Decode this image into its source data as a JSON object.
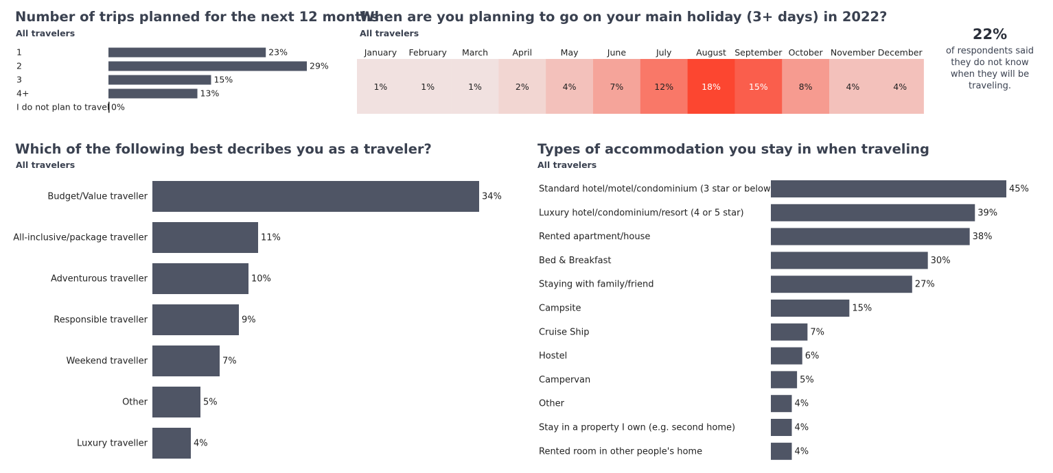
{
  "colors": {
    "bar": "#4f5565",
    "heat_low": "#f0f0f0",
    "heat_high": "#fc4630",
    "text": "#222222"
  },
  "panels": {
    "trips": {
      "title": "Number of trips planned for the next 12 months",
      "subtitle": "All travelers"
    },
    "holiday": {
      "title": "When are you planning to go on your main holiday (3+ days) in 2022?",
      "subtitle": "All travelers"
    },
    "traveler": {
      "title": "Which of the following best decribes you as a traveler?",
      "subtitle": "All travelers"
    },
    "accommodation": {
      "title": "Types of accommodation you stay in when traveling",
      "subtitle": "All travelers"
    }
  },
  "callout": {
    "value": "22%",
    "text": "of respondents said they do not know when they will be traveling."
  },
  "chart_data": [
    {
      "type": "bar",
      "orientation": "horizontal",
      "title": "Number of trips planned for the next 12 months",
      "categories": [
        "1",
        "2",
        "3",
        "4+",
        "I do not plan to travel"
      ],
      "values": [
        23,
        29,
        15,
        13,
        0
      ],
      "labels": [
        "23%",
        "29%",
        "15%",
        "13%",
        "0%"
      ],
      "unit": "%",
      "xlim": [
        0,
        29
      ]
    },
    {
      "type": "heatmap",
      "title": "When are you planning to go on your main holiday (3+ days) in 2022?",
      "categories": [
        "January",
        "February",
        "March",
        "April",
        "May",
        "June",
        "July",
        "August",
        "September",
        "October",
        "November",
        "December"
      ],
      "values": [
        1,
        1,
        1,
        2,
        4,
        7,
        12,
        18,
        15,
        8,
        4,
        4
      ],
      "labels": [
        "1%",
        "1%",
        "1%",
        "2%",
        "4%",
        "7%",
        "12%",
        "18%",
        "15%",
        "8%",
        "4%",
        "4%"
      ],
      "unit": "%"
    },
    {
      "type": "bar",
      "orientation": "horizontal",
      "title": "Which of the following best decribes you as a traveler?",
      "categories": [
        "Budget/Value traveller",
        "All-inclusive/package traveller",
        "Adventurous traveller",
        "Responsible traveller",
        "Weekend traveller",
        "Other",
        "Luxury traveller"
      ],
      "values": [
        34,
        11,
        10,
        9,
        7,
        5,
        4
      ],
      "labels": [
        "34%",
        "11%",
        "10%",
        "9%",
        "7%",
        "5%",
        "4%"
      ],
      "unit": "%",
      "xlim": [
        0,
        34
      ]
    },
    {
      "type": "bar",
      "orientation": "horizontal",
      "title": "Types of accommodation you stay in when traveling",
      "categories": [
        "Standard hotel/motel/condominium (3 star or below)",
        "Luxury hotel/condominium/resort (4 or 5 star)",
        "Rented apartment/house",
        "Bed & Breakfast",
        "Staying with family/friend",
        "Campsite",
        "Cruise Ship",
        "Hostel",
        "Campervan",
        "Other",
        "Stay in a property I own (e.g. second home)",
        "Rented room in other people's home"
      ],
      "values": [
        45,
        39,
        38,
        30,
        27,
        15,
        7,
        6,
        5,
        4,
        4,
        4
      ],
      "labels": [
        "45%",
        "39%",
        "38%",
        "30%",
        "27%",
        "15%",
        "7%",
        "6%",
        "5%",
        "4%",
        "4%",
        "4%"
      ],
      "unit": "%",
      "xlim": [
        0,
        45
      ]
    }
  ]
}
